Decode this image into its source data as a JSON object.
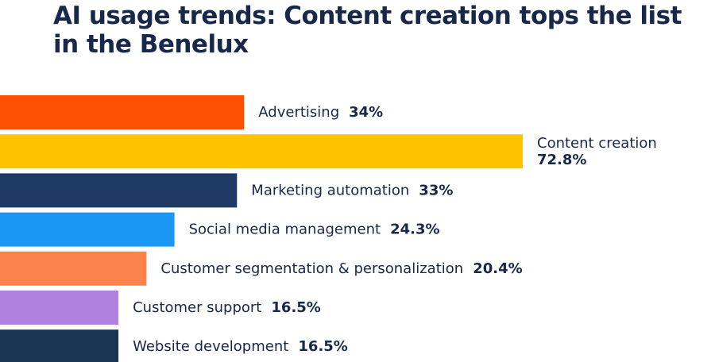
{
  "chart_data": {
    "type": "bar",
    "orientation": "horizontal",
    "title": "AI usage trends: Content creation tops the list in the Benelux",
    "categories": [
      "Advertising",
      "Content creation",
      "Marketing automation",
      "Social media management",
      "Customer segmentation & personalization",
      "Customer support",
      "Website development"
    ],
    "values": [
      34,
      72.8,
      33,
      24.3,
      20.4,
      16.5,
      16.5
    ],
    "value_labels": [
      "34%",
      "72.8%",
      "33%",
      "24.3%",
      "20.4%",
      "16.5%",
      "16.5%"
    ],
    "colors": [
      "#fe5000",
      "#ffc200",
      "#1e3a64",
      "#1a97f5",
      "#fc834d",
      "#b181e0",
      "#193554"
    ],
    "xlim": [
      0,
      100
    ],
    "grid": false,
    "legend": "none"
  }
}
